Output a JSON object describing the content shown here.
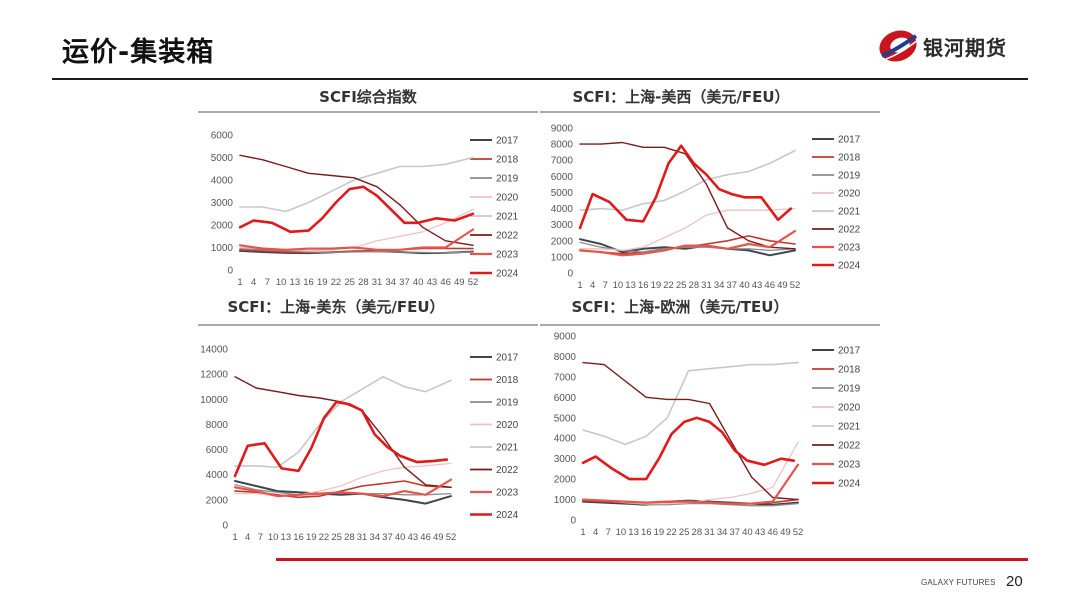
{
  "header": {
    "title": "运价-集装箱",
    "brand": "银河期货"
  },
  "footer": {
    "brand": "GALAXY FUTURES",
    "page": "20"
  },
  "colors": {
    "2017": "#3d4550",
    "2018": "#c0392b",
    "2019": "#8c8c8c",
    "2020": "#f2c1c1",
    "2021": "#c8c8c8",
    "2022": "#7a1b1b",
    "2023": "#e5554c",
    "2024": "#e01a1a",
    "brand_red": "#c9151e",
    "brand_blue": "#1d3f8f"
  },
  "chart_data": [
    {
      "type": "line",
      "title": "SCFI综合指数",
      "ylim": [
        0,
        6000
      ],
      "yticks": [
        "0",
        "1000",
        "2000",
        "3000",
        "4000",
        "5000",
        "6000"
      ],
      "xticks": [
        "1",
        "4",
        "7",
        "10",
        "13",
        "16",
        "19",
        "22",
        "25",
        "28",
        "31",
        "34",
        "37",
        "40",
        "43",
        "46",
        "49",
        "52"
      ],
      "series": [
        {
          "name": "2017",
          "x": [
            1,
            6,
            11,
            16,
            21,
            26,
            31,
            36,
            41,
            46,
            52
          ],
          "y": [
            850,
            800,
            760,
            750,
            780,
            830,
            830,
            800,
            750,
            760,
            820
          ]
        },
        {
          "name": "2018",
          "x": [
            1,
            6,
            11,
            16,
            21,
            26,
            31,
            36,
            41,
            46,
            52
          ],
          "y": [
            900,
            850,
            800,
            780,
            800,
            830,
            860,
            900,
            960,
            960,
            950
          ]
        },
        {
          "name": "2019",
          "x": [
            1,
            6,
            11,
            16,
            21,
            26,
            31,
            36,
            41,
            46,
            52
          ],
          "y": [
            950,
            900,
            850,
            800,
            780,
            800,
            820,
            800,
            780,
            760,
            800
          ]
        },
        {
          "name": "2020",
          "x": [
            1,
            6,
            11,
            16,
            21,
            26,
            31,
            36,
            41,
            46,
            52
          ],
          "y": [
            1000,
            980,
            900,
            850,
            900,
            1000,
            1300,
            1500,
            1700,
            2100,
            2700
          ]
        },
        {
          "name": "2021",
          "x": [
            1,
            6,
            11,
            16,
            21,
            26,
            31,
            36,
            41,
            46,
            52
          ],
          "y": [
            2800,
            2800,
            2600,
            3000,
            3500,
            4000,
            4300,
            4600,
            4600,
            4700,
            5000
          ]
        },
        {
          "name": "2022",
          "x": [
            1,
            6,
            11,
            16,
            21,
            26,
            31,
            36,
            41,
            46,
            52
          ],
          "y": [
            5100,
            4900,
            4600,
            4300,
            4200,
            4100,
            3700,
            2900,
            1900,
            1300,
            1100
          ]
        },
        {
          "name": "2023",
          "x": [
            1,
            6,
            11,
            16,
            21,
            26,
            31,
            36,
            41,
            46,
            52
          ],
          "y": [
            1100,
            950,
            900,
            950,
            950,
            1000,
            900,
            900,
            1000,
            1000,
            1800
          ]
        },
        {
          "name": "2024",
          "x": [
            1,
            4,
            8,
            12,
            16,
            19,
            22,
            25,
            28,
            31,
            34,
            37,
            40,
            44,
            48,
            52
          ],
          "y": [
            1900,
            2200,
            2100,
            1700,
            1750,
            2300,
            3000,
            3600,
            3700,
            3300,
            2700,
            2100,
            2100,
            2300,
            2200,
            2500
          ]
        }
      ],
      "legend": "right"
    },
    {
      "type": "line",
      "title": "SCFI：上海-美西（美元/FEU）",
      "ylim": [
        0,
        9000
      ],
      "yticks": [
        "0",
        "1000",
        "2000",
        "3000",
        "4000",
        "5000",
        "6000",
        "7000",
        "8000",
        "9000"
      ],
      "xticks": [
        "1",
        "4",
        "7",
        "10",
        "13",
        "16",
        "19",
        "22",
        "25",
        "28",
        "31",
        "34",
        "37",
        "40",
        "43",
        "46",
        "49",
        "52"
      ],
      "series": [
        {
          "name": "2017",
          "x": [
            1,
            6,
            11,
            16,
            21,
            26,
            31,
            36,
            41,
            46,
            52
          ],
          "y": [
            2100,
            1800,
            1300,
            1500,
            1600,
            1500,
            1700,
            1500,
            1400,
            1100,
            1400
          ]
        },
        {
          "name": "2018",
          "x": [
            1,
            6,
            11,
            16,
            21,
            26,
            31,
            36,
            41,
            46,
            52
          ],
          "y": [
            1400,
            1300,
            1200,
            1300,
            1500,
            1600,
            1800,
            2000,
            2300,
            2000,
            1800
          ]
        },
        {
          "name": "2019",
          "x": [
            1,
            6,
            11,
            16,
            21,
            26,
            31,
            36,
            41,
            46,
            52
          ],
          "y": [
            1900,
            1600,
            1400,
            1300,
            1500,
            1600,
            1600,
            1500,
            1500,
            1400,
            1500
          ]
        },
        {
          "name": "2020",
          "x": [
            1,
            6,
            11,
            16,
            21,
            26,
            31,
            36,
            41,
            46,
            52
          ],
          "y": [
            1500,
            1500,
            1400,
            1600,
            2200,
            2800,
            3600,
            3900,
            3900,
            3900,
            4000
          ]
        },
        {
          "name": "2021",
          "x": [
            1,
            6,
            11,
            16,
            21,
            26,
            31,
            36,
            41,
            46,
            52
          ],
          "y": [
            3900,
            4000,
            3900,
            4300,
            4500,
            5100,
            5800,
            6100,
            6300,
            6800,
            7600
          ]
        },
        {
          "name": "2022",
          "x": [
            1,
            6,
            11,
            16,
            21,
            26,
            31,
            36,
            41,
            46,
            52
          ],
          "y": [
            8000,
            8000,
            8100,
            7800,
            7800,
            7400,
            5500,
            2800,
            2000,
            1600,
            1500
          ]
        },
        {
          "name": "2023",
          "x": [
            1,
            6,
            11,
            16,
            21,
            26,
            31,
            36,
            41,
            46,
            52
          ],
          "y": [
            1400,
            1300,
            1100,
            1200,
            1400,
            1700,
            1700,
            1500,
            1800,
            1600,
            2600
          ]
        },
        {
          "name": "2024",
          "x": [
            1,
            4,
            8,
            12,
            16,
            19,
            22,
            25,
            28,
            31,
            34,
            37,
            40,
            44,
            48,
            51
          ],
          "y": [
            2800,
            4900,
            4400,
            3300,
            3200,
            4700,
            6800,
            7900,
            6800,
            6100,
            5200,
            4900,
            4700,
            4700,
            3300,
            4000
          ]
        }
      ],
      "legend": "right"
    },
    {
      "type": "line",
      "title": "SCFI：上海-美东（美元/FEU）",
      "ylim": [
        0,
        14000
      ],
      "yticks": [
        "0",
        "2000",
        "4000",
        "6000",
        "8000",
        "10000",
        "12000",
        "14000"
      ],
      "xticks": [
        "1",
        "4",
        "7",
        "10",
        "13",
        "16",
        "19",
        "22",
        "25",
        "28",
        "31",
        "34",
        "37",
        "40",
        "43",
        "46",
        "49",
        "52"
      ],
      "series": [
        {
          "name": "2017",
          "x": [
            1,
            6,
            11,
            16,
            21,
            26,
            31,
            36,
            41,
            46,
            52
          ],
          "y": [
            3500,
            3100,
            2700,
            2600,
            2500,
            2400,
            2500,
            2200,
            2000,
            1700,
            2300
          ]
        },
        {
          "name": "2018",
          "x": [
            1,
            6,
            11,
            16,
            21,
            26,
            31,
            36,
            41,
            46,
            52
          ],
          "y": [
            2700,
            2600,
            2400,
            2200,
            2300,
            2700,
            3100,
            3300,
            3500,
            3100,
            3000
          ]
        },
        {
          "name": "2019",
          "x": [
            1,
            6,
            11,
            16,
            21,
            26,
            31,
            36,
            41,
            46,
            52
          ],
          "y": [
            3200,
            2800,
            2600,
            2400,
            2500,
            2600,
            2500,
            2500,
            2400,
            2400,
            2500
          ]
        },
        {
          "name": "2020",
          "x": [
            1,
            6,
            11,
            16,
            21,
            26,
            31,
            36,
            41,
            46,
            52
          ],
          "y": [
            2500,
            2500,
            2300,
            2400,
            2700,
            3100,
            3800,
            4300,
            4600,
            4700,
            4900
          ]
        },
        {
          "name": "2021",
          "x": [
            1,
            6,
            11,
            16,
            21,
            26,
            31,
            36,
            41,
            46,
            52
          ],
          "y": [
            4700,
            4700,
            4600,
            5800,
            8000,
            9800,
            10800,
            11800,
            11000,
            10600,
            11500
          ]
        },
        {
          "name": "2022",
          "x": [
            1,
            6,
            11,
            16,
            21,
            26,
            31,
            36,
            41,
            46,
            52
          ],
          "y": [
            11800,
            10900,
            10600,
            10300,
            10100,
            9800,
            9100,
            7000,
            4600,
            3200,
            3000
          ]
        },
        {
          "name": "2023",
          "x": [
            1,
            6,
            11,
            16,
            21,
            26,
            31,
            36,
            41,
            46,
            52
          ],
          "y": [
            3000,
            2700,
            2300,
            2400,
            2500,
            2600,
            2500,
            2300,
            2700,
            2400,
            3600
          ]
        },
        {
          "name": "2024",
          "x": [
            1,
            4,
            8,
            12,
            16,
            19,
            22,
            25,
            28,
            31,
            34,
            37,
            40,
            44,
            48,
            51
          ],
          "y": [
            3900,
            6300,
            6500,
            4500,
            4300,
            6100,
            8500,
            9800,
            9600,
            9100,
            7200,
            6200,
            5500,
            5000,
            5100,
            5200
          ]
        }
      ],
      "legend": "right"
    },
    {
      "type": "line",
      "title": "SCFI：上海-欧洲（美元/TEU）",
      "ylim": [
        0,
        9000
      ],
      "yticks": [
        "0",
        "1000",
        "2000",
        "3000",
        "4000",
        "5000",
        "6000",
        "7000",
        "8000",
        "9000"
      ],
      "xticks": [
        "1",
        "4",
        "7",
        "10",
        "13",
        "16",
        "19",
        "22",
        "25",
        "28",
        "31",
        "34",
        "37",
        "40",
        "43",
        "46",
        "49",
        "52"
      ],
      "series": [
        {
          "name": "2017",
          "x": [
            1,
            6,
            11,
            16,
            21,
            26,
            31,
            36,
            41,
            46,
            52
          ],
          "y": [
            900,
            850,
            800,
            750,
            900,
            950,
            900,
            850,
            800,
            750,
            850
          ]
        },
        {
          "name": "2018",
          "x": [
            1,
            6,
            11,
            16,
            21,
            26,
            31,
            36,
            41,
            46,
            52
          ],
          "y": [
            950,
            900,
            850,
            800,
            850,
            900,
            850,
            800,
            800,
            850,
            1000
          ]
        },
        {
          "name": "2019",
          "x": [
            1,
            6,
            11,
            16,
            21,
            26,
            31,
            36,
            41,
            46,
            52
          ],
          "y": [
            1000,
            950,
            850,
            750,
            750,
            800,
            800,
            750,
            700,
            700,
            800
          ]
        },
        {
          "name": "2020",
          "x": [
            1,
            6,
            11,
            16,
            21,
            26,
            31,
            36,
            41,
            46,
            52
          ],
          "y": [
            1000,
            950,
            850,
            800,
            800,
            850,
            1000,
            1100,
            1300,
            1600,
            3800
          ]
        },
        {
          "name": "2021",
          "x": [
            1,
            6,
            11,
            16,
            21,
            26,
            31,
            36,
            41,
            46,
            52
          ],
          "y": [
            4400,
            4100,
            3700,
            4100,
            5000,
            7300,
            7400,
            7500,
            7600,
            7600,
            7700
          ]
        },
        {
          "name": "2022",
          "x": [
            1,
            6,
            11,
            16,
            21,
            26,
            31,
            36,
            41,
            46,
            52
          ],
          "y": [
            7700,
            7600,
            6800,
            6000,
            5900,
            5900,
            5700,
            3900,
            2100,
            1100,
            1000
          ]
        },
        {
          "name": "2023",
          "x": [
            1,
            6,
            11,
            16,
            21,
            26,
            31,
            36,
            41,
            46,
            52
          ],
          "y": [
            1000,
            950,
            900,
            850,
            900,
            900,
            850,
            800,
            800,
            900,
            2700
          ]
        },
        {
          "name": "2024",
          "x": [
            1,
            4,
            8,
            12,
            16,
            19,
            22,
            25,
            28,
            31,
            34,
            37,
            40,
            44,
            48,
            51
          ],
          "y": [
            2800,
            3100,
            2500,
            2000,
            2000,
            3000,
            4200,
            4800,
            5000,
            4800,
            4300,
            3400,
            2900,
            2700,
            3000,
            2900
          ]
        }
      ],
      "legend": "right"
    }
  ]
}
